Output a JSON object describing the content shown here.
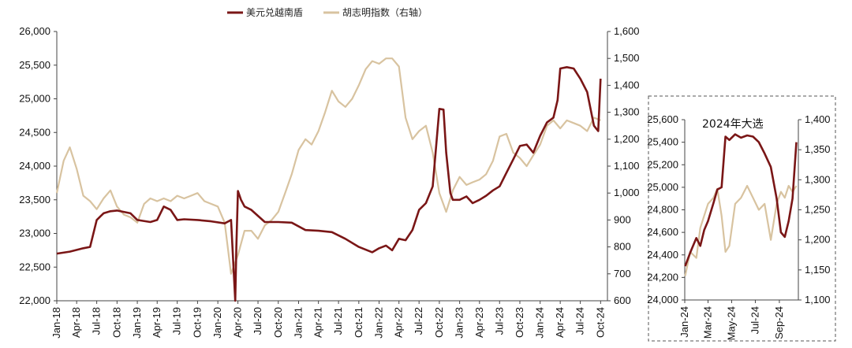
{
  "chart_data": [
    {
      "type": "line",
      "legend": [
        {
          "name": "美元兑越南盾",
          "color": "#7a1616"
        },
        {
          "name": "胡志明指数（右轴）",
          "color": "#d8c3a0"
        }
      ],
      "legend_position": "top-center",
      "xlabel": "",
      "ylabel_left": "",
      "ylabel_right": "",
      "x_tick_labels": [
        "Jan-18",
        "Apr-18",
        "Jul-18",
        "Oct-18",
        "Jan-19",
        "Apr-19",
        "Jul-19",
        "Oct-19",
        "Jan-20",
        "Apr-20",
        "Jul-20",
        "Oct-20",
        "Jan-21",
        "Apr-21",
        "Jul-21",
        "Oct-21",
        "Jan-22",
        "Apr-22",
        "Jul-22",
        "Oct-22",
        "Jan-23",
        "Apr-23",
        "Jul-23",
        "Oct-23",
        "Jan-24",
        "Apr-24",
        "Jul-24",
        "Oct-24"
      ],
      "ylim_left": [
        22000,
        26000
      ],
      "y_ticks_left": [
        "22,000",
        "22,500",
        "23,000",
        "23,500",
        "24,000",
        "24,500",
        "25,000",
        "25,500",
        "26,000"
      ],
      "ylim_right": [
        600,
        1600
      ],
      "y_ticks_right": [
        "600",
        "700",
        "800",
        "900",
        "1,000",
        "1,100",
        "1,200",
        "1,300",
        "1,400",
        "1,500",
        "1,600"
      ],
      "series": [
        {
          "name": "美元兑越南盾",
          "axis": "left",
          "color": "#7a1616",
          "x": [
            "2018-01",
            "2018-03",
            "2018-05",
            "2018-06",
            "2018-07",
            "2018-08",
            "2018-09",
            "2018-10",
            "2018-12",
            "2019-01",
            "2019-03",
            "2019-04",
            "2019-05",
            "2019-06",
            "2019-07",
            "2019-08",
            "2019-10",
            "2019-12",
            "2020-02",
            "2020-03",
            "2020-03-20",
            "2020-03-25",
            "2020-04",
            "2020-04-15",
            "2020-05",
            "2020-06",
            "2020-08",
            "2020-10",
            "2020-12",
            "2021-02",
            "2021-04",
            "2021-06",
            "2021-08",
            "2021-10",
            "2021-12",
            "2022-01",
            "2022-02",
            "2022-03",
            "2022-04",
            "2022-05",
            "2022-06",
            "2022-07",
            "2022-08",
            "2022-09",
            "2022-10",
            "2022-10-20",
            "2022-11",
            "2022-11-20",
            "2022-12",
            "2023-01",
            "2023-02",
            "2023-03",
            "2023-04",
            "2023-05",
            "2023-06",
            "2023-07",
            "2023-08",
            "2023-09",
            "2023-10",
            "2023-11",
            "2023-12",
            "2024-01",
            "2024-02",
            "2024-03",
            "2024-03-20",
            "2024-04",
            "2024-05",
            "2024-06",
            "2024-07",
            "2024-08",
            "2024-09",
            "2024-09-20",
            "2024-10"
          ],
          "y": [
            22700,
            22730,
            22780,
            22800,
            23200,
            23300,
            23330,
            23340,
            23300,
            23200,
            23170,
            23200,
            23400,
            23350,
            23200,
            23210,
            23200,
            23180,
            23150,
            23200,
            22000,
            22800,
            23630,
            23500,
            23400,
            23350,
            23170,
            23170,
            23160,
            23050,
            23040,
            23020,
            22920,
            22800,
            22720,
            22780,
            22820,
            22750,
            22920,
            22900,
            23050,
            23350,
            23450,
            23700,
            24850,
            24840,
            24200,
            23600,
            23500,
            23500,
            23550,
            23450,
            23500,
            23560,
            23640,
            23700,
            23900,
            24100,
            24300,
            24320,
            24200,
            24450,
            24650,
            24720,
            24980,
            25450,
            25470,
            25450,
            25300,
            25100,
            24600,
            24520,
            25300
          ]
        },
        {
          "name": "胡志明指数（右轴）",
          "axis": "right",
          "color": "#d8c3a0",
          "x": [
            "2018-01",
            "2018-02",
            "2018-03",
            "2018-04",
            "2018-05",
            "2018-06",
            "2018-07",
            "2018-08",
            "2018-09",
            "2018-10",
            "2018-11",
            "2018-12",
            "2019-01",
            "2019-02",
            "2019-03",
            "2019-04",
            "2019-05",
            "2019-06",
            "2019-07",
            "2019-08",
            "2019-09",
            "2019-10",
            "2019-11",
            "2019-12",
            "2020-01",
            "2020-02",
            "2020-03",
            "2020-04",
            "2020-05",
            "2020-06",
            "2020-07",
            "2020-08",
            "2020-09",
            "2020-10",
            "2020-11",
            "2020-12",
            "2021-01",
            "2021-02",
            "2021-03",
            "2021-04",
            "2021-05",
            "2021-06",
            "2021-07",
            "2021-08",
            "2021-09",
            "2021-10",
            "2021-11",
            "2021-12",
            "2022-01",
            "2022-02",
            "2022-03",
            "2022-04",
            "2022-05",
            "2022-06",
            "2022-07",
            "2022-08",
            "2022-09",
            "2022-10",
            "2022-11",
            "2022-12",
            "2023-01",
            "2023-02",
            "2023-03",
            "2023-04",
            "2023-05",
            "2023-06",
            "2023-07",
            "2023-08",
            "2023-09",
            "2023-10",
            "2023-11",
            "2023-12",
            "2024-01",
            "2024-02",
            "2024-03",
            "2024-04",
            "2024-05",
            "2024-06",
            "2024-07",
            "2024-08",
            "2024-09",
            "2024-10"
          ],
          "y": [
            1000,
            1120,
            1170,
            1090,
            990,
            970,
            940,
            980,
            1010,
            950,
            920,
            910,
            890,
            960,
            980,
            970,
            980,
            970,
            990,
            980,
            990,
            1000,
            970,
            960,
            950,
            890,
            700,
            770,
            860,
            860,
            830,
            880,
            900,
            930,
            1000,
            1070,
            1160,
            1200,
            1180,
            1230,
            1300,
            1380,
            1340,
            1320,
            1350,
            1400,
            1460,
            1490,
            1480,
            1500,
            1500,
            1470,
            1280,
            1200,
            1230,
            1250,
            1150,
            1000,
            930,
            1010,
            1060,
            1030,
            1040,
            1050,
            1070,
            1120,
            1210,
            1220,
            1150,
            1130,
            1100,
            1140,
            1180,
            1250,
            1270,
            1240,
            1270,
            1260,
            1250,
            1230,
            1280,
            1270
          ]
        }
      ]
    },
    {
      "type": "line",
      "title": "2024年大选",
      "x_tick_labels": [
        "Jan-24",
        "Mar-24",
        "May-24",
        "Jul-24",
        "Sep-24"
      ],
      "ylim_left": [
        24000,
        25600
      ],
      "y_ticks_left": [
        "24,000",
        "24,200",
        "24,400",
        "24,600",
        "24,800",
        "25,000",
        "25,200",
        "25,400",
        "25,600"
      ],
      "ylim_right": [
        1100,
        1400
      ],
      "y_ticks_right": [
        "1,100",
        "1,150",
        "1,200",
        "1,250",
        "1,300",
        "1,350",
        "1,400"
      ],
      "series": [
        {
          "name": "美元兑越南盾",
          "axis": "left",
          "color": "#7a1616",
          "x": [
            "2024-01-02",
            "2024-01-15",
            "2024-01-31",
            "2024-02-10",
            "2024-02-20",
            "2024-03-01",
            "2024-03-15",
            "2024-03-25",
            "2024-04-05",
            "2024-04-15",
            "2024-04-25",
            "2024-05-10",
            "2024-05-25",
            "2024-06-10",
            "2024-06-25",
            "2024-07-10",
            "2024-07-25",
            "2024-08-10",
            "2024-08-25",
            "2024-09-05",
            "2024-09-15",
            "2024-09-25",
            "2024-10-05",
            "2024-10-15"
          ],
          "y": [
            24300,
            24420,
            24550,
            24480,
            24620,
            24700,
            24860,
            24980,
            25000,
            25450,
            25420,
            25470,
            25440,
            25460,
            25450,
            25400,
            25300,
            25180,
            24900,
            24600,
            24560,
            24700,
            24900,
            25400
          ]
        },
        {
          "name": "胡志明指数（右轴）",
          "axis": "right",
          "color": "#d8c3a0",
          "x": [
            "2024-01-02",
            "2024-01-15",
            "2024-01-31",
            "2024-02-10",
            "2024-02-20",
            "2024-03-01",
            "2024-03-15",
            "2024-03-25",
            "2024-04-05",
            "2024-04-15",
            "2024-04-25",
            "2024-05-10",
            "2024-05-25",
            "2024-06-10",
            "2024-06-25",
            "2024-07-10",
            "2024-07-25",
            "2024-08-10",
            "2024-08-25",
            "2024-09-05",
            "2024-09-15",
            "2024-09-25",
            "2024-10-05",
            "2024-10-15"
          ],
          "y": [
            1140,
            1180,
            1170,
            1220,
            1240,
            1260,
            1270,
            1285,
            1240,
            1180,
            1190,
            1260,
            1270,
            1290,
            1270,
            1250,
            1260,
            1200,
            1260,
            1280,
            1270,
            1290,
            1280,
            1290
          ]
        }
      ]
    }
  ]
}
